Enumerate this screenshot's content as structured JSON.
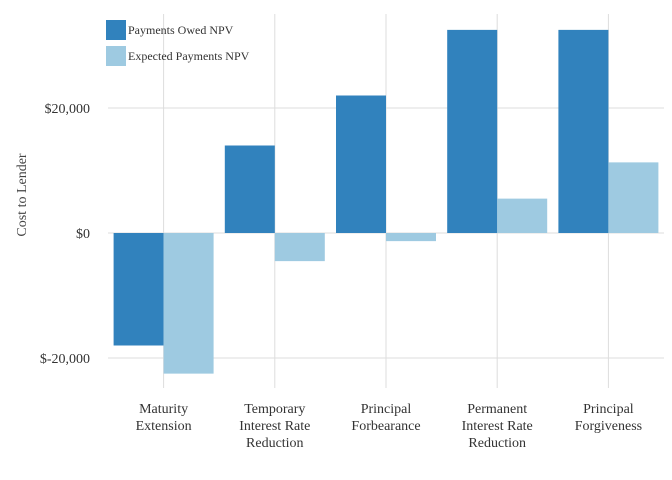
{
  "chart_data": {
    "type": "bar",
    "ylabel": "Cost to Lender",
    "xlabel": "",
    "ylim": [
      -24000,
      36000
    ],
    "yticks": [
      -20000,
      0,
      20000
    ],
    "ytick_labels": [
      "$-20,000",
      "$0",
      "$20,000"
    ],
    "grid": true,
    "legend_position": "top-left",
    "categories": [
      [
        "Maturity",
        "Extension"
      ],
      [
        "Temporary",
        "Interest Rate",
        "Reduction"
      ],
      [
        "Principal",
        "Forbearance"
      ],
      [
        "Permanent",
        "Interest Rate",
        "Reduction"
      ],
      [
        "Principal",
        "Forgiveness"
      ]
    ],
    "series": [
      {
        "name": "Payments Owed NPV",
        "color": "#3182bd",
        "values": [
          -18000,
          14000,
          22000,
          32500,
          32500
        ]
      },
      {
        "name": "Expected Payments NPV",
        "color": "#9ecae1",
        "values": [
          -22500,
          -4500,
          -1300,
          5500,
          11300
        ]
      }
    ]
  }
}
